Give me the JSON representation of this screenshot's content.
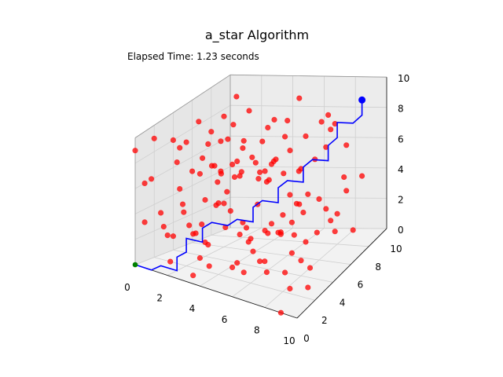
{
  "chart_data": {
    "type": "scatter",
    "title": "a_star Algorithm",
    "annotations": [
      "Elapsed Time: 1.23 seconds"
    ],
    "xlim": [
      0,
      10
    ],
    "ylim": [
      0,
      10
    ],
    "zlim": [
      0,
      10
    ],
    "x_ticks": [
      "0",
      "2",
      "4",
      "6",
      "8",
      "10"
    ],
    "y_ticks": [
      "0",
      "2",
      "4",
      "6",
      "8",
      "10"
    ],
    "z_ticks": [
      "0",
      "2",
      "4",
      "6",
      "8",
      "10"
    ],
    "grid": true,
    "colors": {
      "obstacles": "#ff0000",
      "path": "#0000ff",
      "start": "#008000",
      "goal": "#0000ff"
    },
    "start": [
      0,
      0,
      0
    ],
    "goal": [
      9,
      9,
      9
    ],
    "path": [
      [
        0,
        0,
        0
      ],
      [
        1,
        0,
        0
      ],
      [
        1,
        1,
        0
      ],
      [
        2,
        1,
        0
      ],
      [
        2,
        1,
        1
      ],
      [
        2,
        2,
        1
      ],
      [
        2,
        2,
        2
      ],
      [
        3,
        2,
        2
      ],
      [
        3,
        2,
        3
      ],
      [
        3,
        3,
        3
      ],
      [
        4,
        3,
        3
      ],
      [
        4,
        4,
        3
      ],
      [
        5,
        4,
        3
      ],
      [
        5,
        4,
        4
      ],
      [
        5,
        5,
        4
      ],
      [
        6,
        5,
        4
      ],
      [
        6,
        5,
        5
      ],
      [
        6,
        6,
        5
      ],
      [
        7,
        6,
        5
      ],
      [
        7,
        6,
        6
      ],
      [
        7,
        7,
        6
      ],
      [
        8,
        7,
        6
      ],
      [
        8,
        7,
        7
      ],
      [
        8,
        8,
        7
      ],
      [
        8,
        8,
        8
      ],
      [
        9,
        8,
        8
      ],
      [
        9,
        9,
        8
      ],
      [
        9,
        9,
        9
      ]
    ],
    "obstacles": [
      [
        1,
        2,
        0
      ],
      [
        1,
        6,
        0
      ],
      [
        2,
        4,
        1
      ],
      [
        3,
        1,
        0
      ],
      [
        4,
        7,
        1
      ],
      [
        5,
        3,
        0
      ],
      [
        6,
        8,
        0
      ],
      [
        7,
        2,
        1
      ],
      [
        8,
        5,
        0
      ],
      [
        9,
        1,
        1
      ],
      [
        2,
        8,
        1
      ],
      [
        6,
        0,
        2
      ],
      [
        8,
        0,
        3
      ],
      [
        9,
        3,
        0
      ],
      [
        9,
        6,
        2
      ],
      [
        4,
        4,
        0
      ],
      [
        5,
        6,
        2
      ],
      [
        3,
        9,
        0
      ],
      [
        7,
        9,
        1
      ],
      [
        1,
        4,
        2
      ],
      [
        2,
        0,
        3
      ],
      [
        0,
        3,
        2
      ],
      [
        0,
        7,
        1
      ],
      [
        3,
        6,
        1
      ],
      [
        8,
        3,
        2
      ],
      [
        6,
        3,
        1
      ],
      [
        4,
        1,
        1
      ],
      [
        5,
        9,
        2
      ],
      [
        9,
        8,
        1
      ],
      [
        7,
        4,
        0
      ],
      [
        1,
        8,
        3
      ],
      [
        2,
        3,
        2
      ],
      [
        3,
        5,
        3
      ],
      [
        4,
        0,
        2
      ],
      [
        6,
        2,
        3
      ],
      [
        5,
        1,
        4
      ],
      [
        7,
        0,
        4
      ],
      [
        8,
        2,
        5
      ],
      [
        9,
        5,
        4
      ],
      [
        0,
        5,
        3
      ],
      [
        1,
        1,
        4
      ],
      [
        2,
        6,
        3
      ],
      [
        3,
        8,
        4
      ],
      [
        4,
        2,
        5
      ],
      [
        6,
        7,
        3
      ],
      [
        7,
        5,
        2
      ],
      [
        8,
        9,
        3
      ],
      [
        9,
        0,
        5
      ],
      [
        0,
        9,
        4
      ],
      [
        2,
        9,
        5
      ],
      [
        4,
        9,
        4
      ],
      [
        5,
        0,
        6
      ],
      [
        6,
        9,
        5
      ],
      [
        8,
        6,
        4
      ],
      [
        9,
        3,
        6
      ],
      [
        1,
        3,
        5
      ],
      [
        3,
        0,
        5
      ],
      [
        0,
        1,
        6
      ],
      [
        2,
        5,
        6
      ],
      [
        4,
        6,
        6
      ],
      [
        5,
        8,
        6
      ],
      [
        7,
        1,
        6
      ],
      [
        8,
        4,
        7
      ],
      [
        9,
        7,
        5
      ],
      [
        0,
        8,
        7
      ],
      [
        1,
        6,
        7
      ],
      [
        3,
        3,
        7
      ],
      [
        4,
        8,
        8
      ],
      [
        6,
        1,
        8
      ],
      [
        7,
        8,
        8
      ],
      [
        9,
        2,
        8
      ],
      [
        0,
        4,
        8
      ],
      [
        2,
        1,
        8
      ],
      [
        3,
        7,
        9
      ],
      [
        5,
        3,
        9
      ],
      [
        6,
        6,
        9
      ],
      [
        8,
        1,
        9
      ],
      [
        9,
        6,
        9
      ],
      [
        1,
        9,
        9
      ],
      [
        0,
        2,
        9
      ],
      [
        2,
        7,
        8
      ],
      [
        4,
        4,
        7
      ],
      [
        5,
        5,
        8
      ],
      [
        6,
        3,
        7
      ],
      [
        7,
        4,
        9
      ],
      [
        8,
        9,
        6
      ],
      [
        9,
        9,
        4
      ],
      [
        3,
        4,
        6
      ],
      [
        1,
        0,
        7
      ],
      [
        0,
        6,
        5
      ],
      [
        2,
        2,
        9
      ],
      [
        4,
        0,
        8
      ],
      [
        5,
        2,
        7
      ],
      [
        6,
        8,
        7
      ],
      [
        7,
        9,
        7
      ],
      [
        8,
        7,
        9
      ],
      [
        9,
        4,
        3
      ],
      [
        3,
        9,
        7
      ],
      [
        0,
        0,
        9
      ],
      [
        1,
        5,
        9
      ],
      [
        4,
        5,
        2
      ],
      [
        5,
        7,
        1
      ],
      [
        6,
        4,
        6
      ],
      [
        7,
        3,
        8
      ],
      [
        3,
        2,
        8
      ],
      [
        2,
        8,
        6
      ],
      [
        1,
        7,
        4
      ],
      [
        0,
        4,
        1
      ],
      [
        5,
        9,
        9
      ],
      [
        8,
        3,
        4
      ],
      [
        9,
        1,
        7
      ],
      [
        6,
        0,
        9
      ],
      [
        4,
        3,
        9
      ],
      [
        2,
        4,
        4
      ],
      [
        3,
        6,
        5
      ],
      [
        7,
        6,
        3
      ],
      [
        8,
        8,
        2
      ],
      [
        9,
        0,
        0
      ],
      [
        0,
        1,
        3
      ],
      [
        1,
        3,
        8
      ],
      [
        5,
        4,
        1
      ],
      [
        6,
        5,
        2
      ],
      [
        4,
        7,
        5
      ],
      [
        3,
        1,
        3
      ],
      [
        7,
        2,
        7
      ],
      [
        8,
        4,
        1
      ],
      [
        2,
        6,
        9
      ],
      [
        0,
        9,
        6
      ],
      [
        9,
        5,
        8
      ],
      [
        5,
        6,
        6
      ]
    ]
  }
}
